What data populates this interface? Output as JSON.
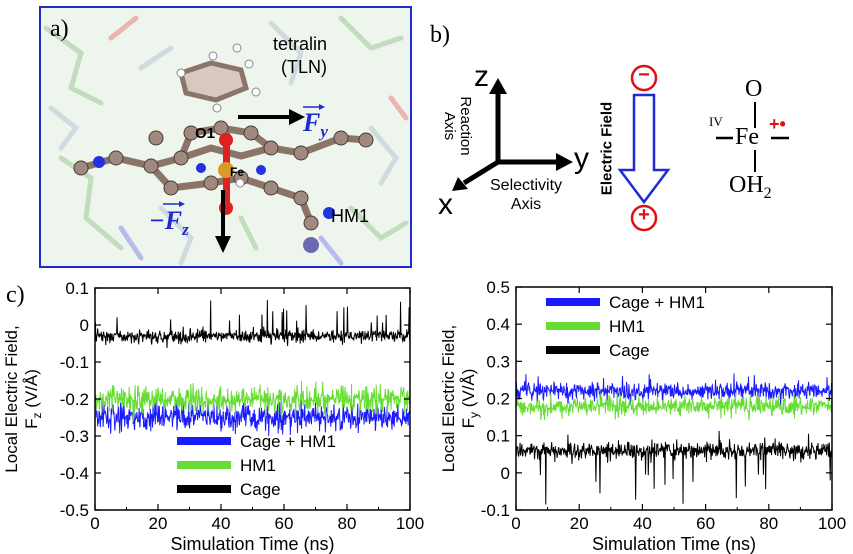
{
  "panel_a": {
    "label": "a)",
    "molecule_name": "tetralin",
    "molecule_abbr": "(TLN)",
    "atom_o1": "O1",
    "atom_fe": "Fe",
    "protein": "HM1",
    "force_y_sign": "",
    "force_y": "F",
    "force_y_sub": "y",
    "force_z_sign": "−",
    "force_z": "F",
    "force_z_sub": "z",
    "colors": {
      "border": "#1f2bd0",
      "force": "#1f2bd0"
    }
  },
  "panel_b": {
    "label": "b)",
    "axis_z": "z",
    "axis_y": "y",
    "axis_x": "x",
    "reaction_axis_1": "Reaction",
    "reaction_axis_2": "Axis",
    "selectivity_axis_1": "Selectivity",
    "selectivity_axis_2": "Axis",
    "electric_field": "Electric Field",
    "minus_sign": "−",
    "plus_sign": "+",
    "oxidation_state": "IV",
    "iron": "Fe",
    "oxo": "O",
    "water": "OH",
    "water_sub": "2",
    "radical_cation": "+•"
  },
  "panel_c_label": "c)",
  "chart_data": [
    {
      "type": "line",
      "title": "",
      "xlabel": "Simulation Time (ns)",
      "ylabel_line1": "Local Electric Field,",
      "ylabel_line2": "F",
      "ylabel_sub": "z",
      "ylabel_unit": " (V/Å)",
      "xlim": [
        0,
        100
      ],
      "ylim": [
        -0.5,
        0.1
      ],
      "xticks": [
        0,
        20,
        40,
        60,
        80,
        100
      ],
      "yticks": [
        0.1,
        0,
        -0.1,
        -0.2,
        -0.3,
        -0.4,
        -0.5
      ],
      "ytick_labels": [
        "0.1",
        "0",
        "-0.1",
        "-0.2",
        "-0.3",
        "-0.4",
        "-0.5"
      ],
      "legend_position": "bottom-center",
      "series": [
        {
          "name": "Cage + HM1",
          "color": "#1a1aff",
          "mean": -0.25,
          "noise": 0.03,
          "min": -0.3,
          "max": -0.19
        },
        {
          "name": "HM1",
          "color": "#66dd33",
          "mean": -0.2,
          "noise": 0.03,
          "min": -0.27,
          "max": -0.15
        },
        {
          "name": "Cage",
          "color": "#000000",
          "mean": -0.03,
          "noise": 0.015,
          "min": -0.07,
          "max": 0.07
        }
      ]
    },
    {
      "type": "line",
      "title": "",
      "xlabel": "Simulation Time (ns)",
      "ylabel_line1": "Local Electric Field,",
      "ylabel_line2": "F",
      "ylabel_sub": "y",
      "ylabel_unit": " (V/Å)",
      "xlim": [
        0,
        100
      ],
      "ylim": [
        -0.1,
        0.5
      ],
      "xticks": [
        0,
        20,
        40,
        60,
        80,
        100
      ],
      "yticks": [
        0.5,
        0.4,
        0.3,
        0.2,
        0.1,
        0,
        -0.1
      ],
      "ytick_labels": [
        "0.5",
        "0.4",
        "0.3",
        "0.2",
        "0.1",
        "0",
        "-0.1"
      ],
      "legend_position": "top-left",
      "series": [
        {
          "name": "Cage + HM1",
          "color": "#1a1aff",
          "mean": 0.22,
          "noise": 0.02,
          "min": 0.18,
          "max": 0.27
        },
        {
          "name": "HM1",
          "color": "#66dd33",
          "mean": 0.18,
          "noise": 0.02,
          "min": 0.14,
          "max": 0.22
        },
        {
          "name": "Cage",
          "color": "#000000",
          "mean": 0.06,
          "noise": 0.02,
          "min": -0.09,
          "max": 0.12
        }
      ]
    }
  ]
}
